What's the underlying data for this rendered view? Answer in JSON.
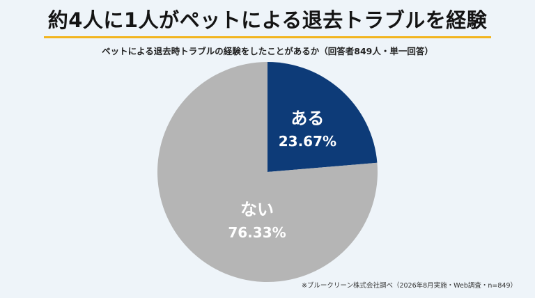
{
  "headline": "約4人に1人がペットによる退去トラブルを経験",
  "colors": {
    "background": "#eef4f9",
    "accent_underline": "#f2b51f",
    "slice_yes": "#0d3b78",
    "slice_no": "#b5b5b5"
  },
  "chart_data": {
    "type": "pie",
    "title": "ペットによる退去時トラブルの経験をしたことがあるか（回答者849人・単一回答）",
    "slices": [
      {
        "label": "ある",
        "value": 23.67,
        "display": "23.67%",
        "color": "#0d3b78"
      },
      {
        "label": "ない",
        "value": 76.33,
        "display": "76.33%",
        "color": "#b5b5b5"
      }
    ],
    "start": "12 o'clock",
    "direction": "clockwise"
  },
  "footnote": "※ブルークリーン株式会社調べ（2026年8月実施・Web調査・n=849）"
}
